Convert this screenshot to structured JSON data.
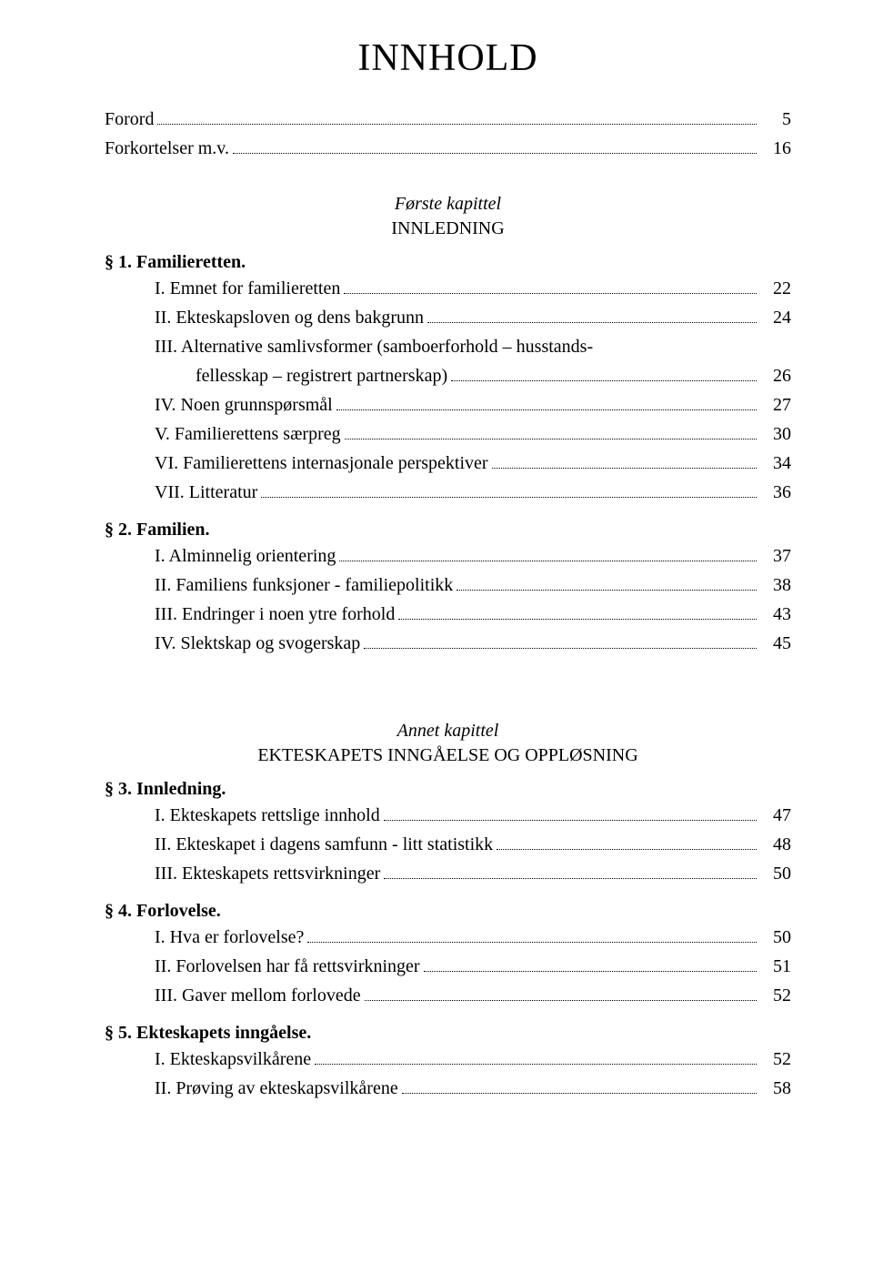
{
  "title": "INNHOLD",
  "front": [
    {
      "label": "Forord",
      "page": "5"
    },
    {
      "label": "Forkortelser m.v.",
      "page": "16"
    }
  ],
  "chapter1": {
    "header": "Første kapittel",
    "title": "INNLEDNING",
    "sections": [
      {
        "heading": "§  1. Familieretten.",
        "items": [
          {
            "label": "I. Emnet for familieretten",
            "page": "22"
          },
          {
            "label": "II. Ekteskapsloven og dens bakgrunn",
            "page": "24"
          },
          {
            "label": "III. Alternative samlivsformer (samboerforhold – husstands-",
            "cont": "fellesskap – registrert partnerskap)",
            "page": "26"
          },
          {
            "label": "IV. Noen grunnspørsmål",
            "page": "27"
          },
          {
            "label": "V. Familierettens særpreg",
            "page": "30"
          },
          {
            "label": "VI. Familierettens internasjonale perspektiver",
            "page": "34"
          },
          {
            "label": "VII. Litteratur",
            "page": "36"
          }
        ]
      },
      {
        "heading": "§  2. Familien.",
        "items": [
          {
            "label": "I. Alminnelig orientering",
            "page": "37"
          },
          {
            "label": "II. Familiens funksjoner - familiepolitikk",
            "page": "38"
          },
          {
            "label": "III. Endringer i noen ytre forhold",
            "page": "43"
          },
          {
            "label": "IV. Slektskap og svogerskap",
            "page": "45"
          }
        ]
      }
    ]
  },
  "chapter2": {
    "header": "Annet kapittel",
    "title": "EKTESKAPETS INNGÅELSE OG OPPLØSNING",
    "sections": [
      {
        "heading": "§  3. Innledning.",
        "items": [
          {
            "label": "I. Ekteskapets rettslige innhold",
            "page": "47"
          },
          {
            "label": "II. Ekteskapet i dagens samfunn - litt statistikk",
            "page": "48"
          },
          {
            "label": "III. Ekteskapets rettsvirkninger",
            "page": "50"
          }
        ]
      },
      {
        "heading": "§ 4. Forlovelse.",
        "items": [
          {
            "label": "I. Hva er forlovelse?",
            "page": "50"
          },
          {
            "label": "II. Forlovelsen har få rettsvirkninger",
            "page": "51"
          },
          {
            "label": "III. Gaver mellom forlovede",
            "page": "52"
          }
        ]
      },
      {
        "heading": "§ 5. Ekteskapets inngåelse.",
        "items": [
          {
            "label": "I. Ekteskapsvilkårene",
            "page": "52"
          },
          {
            "label": "II. Prøving av ekteskapsvilkårene",
            "page": "58"
          }
        ]
      }
    ]
  }
}
